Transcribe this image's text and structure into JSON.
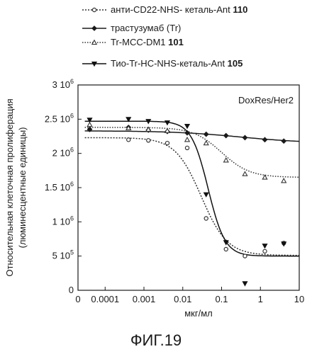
{
  "figure_caption": "ФИГ.19",
  "chart_data": {
    "type": "scatter",
    "title": "",
    "panel_label": "DoxRes/Her2",
    "xlabel": "мкг/мл",
    "ylabel_line1": "Относительная клеточная пролиферация",
    "ylabel_line2": "(люминесцентные единицы)",
    "x_scale": "log",
    "xlim": [
      2e-05,
      10
    ],
    "ylim": [
      0,
      3000000
    ],
    "grid": false,
    "legend_position": "top",
    "x_ticks": [
      {
        "value": 2e-05,
        "label": "0"
      },
      {
        "value": 0.0001,
        "label": "0.0001"
      },
      {
        "value": 0.001,
        "label": "0.001"
      },
      {
        "value": 0.01,
        "label": "0.01"
      },
      {
        "value": 0.1,
        "label": "0.1"
      },
      {
        "value": 1,
        "label": "1"
      },
      {
        "value": 10,
        "label": "10"
      }
    ],
    "y_ticks": [
      {
        "value": 0,
        "mant": "0",
        "exp": ""
      },
      {
        "value": 500000,
        "mant": "5 10",
        "exp": "5"
      },
      {
        "value": 1000000,
        "mant": "1 10",
        "exp": "6"
      },
      {
        "value": 1500000,
        "mant": "1.5 10",
        "exp": "6"
      },
      {
        "value": 2000000,
        "mant": "2 10",
        "exp": "6"
      },
      {
        "value": 2500000,
        "mant": "2.5 10",
        "exp": "6"
      },
      {
        "value": 3000000,
        "mant": "3 10",
        "exp": "6"
      }
    ],
    "series": [
      {
        "name_prefix": "анти-CD22-NHS- кеталь-Ant ",
        "name_bold": "110",
        "color": "#333333",
        "dash": "2,2",
        "marker": "circle",
        "points": [
          [
            4e-05,
            2350000
          ],
          [
            0.0004,
            2200000
          ],
          [
            0.0013,
            2190000
          ],
          [
            0.004,
            2150000
          ],
          [
            0.013,
            2080000
          ],
          [
            0.04,
            1050000
          ],
          [
            0.13,
            600000
          ],
          [
            0.4,
            500000
          ],
          [
            1.3,
            570000
          ],
          [
            4,
            690000
          ]
        ],
        "curve": {
          "top": 2230000,
          "bottom": 510000,
          "ec50": 0.03,
          "hill": 1.3
        }
      },
      {
        "name_prefix": "трастузумаб (Tr)",
        "name_bold": "",
        "color": "#1a1a1a",
        "dash": "",
        "marker": "diamond",
        "points": [
          [
            4e-05,
            2350000
          ],
          [
            0.0004,
            2380000
          ],
          [
            0.0013,
            2340000
          ],
          [
            0.004,
            2320000
          ],
          [
            0.013,
            2300000
          ],
          [
            0.04,
            2280000
          ],
          [
            0.13,
            2260000
          ],
          [
            0.4,
            2230000
          ],
          [
            1.3,
            2200000
          ],
          [
            4,
            2180000
          ]
        ],
        "curve": {
          "top": 2330000,
          "bottom": 2150000,
          "ec50": 0.3,
          "hill": 0.5
        }
      },
      {
        "name_prefix": "Tr-MCC-DM1 ",
        "name_bold": "101",
        "color": "#333333",
        "dash": "1.5,2",
        "marker": "triangle",
        "points": [
          [
            4e-05,
            2420000
          ],
          [
            0.0004,
            2370000
          ],
          [
            0.0013,
            2350000
          ],
          [
            0.004,
            2330000
          ],
          [
            0.013,
            2200000
          ],
          [
            0.04,
            2150000
          ],
          [
            0.13,
            1900000
          ],
          [
            0.4,
            1700000
          ],
          [
            1.3,
            1650000
          ],
          [
            4,
            1600000
          ]
        ],
        "curve": {
          "top": 2380000,
          "bottom": 1650000,
          "ec50": 0.1,
          "hill": 1.2
        }
      },
      {
        "name_prefix": "Тио-Tr-HC-NHS-кеталь-Ant ",
        "name_bold": "105",
        "color": "#111111",
        "dash": "",
        "marker": "triangle-down",
        "points": [
          [
            4e-05,
            2490000
          ],
          [
            0.0004,
            2500000
          ],
          [
            0.0013,
            2470000
          ],
          [
            0.004,
            2450000
          ],
          [
            0.013,
            2400000
          ],
          [
            0.04,
            1400000
          ],
          [
            0.13,
            700000
          ],
          [
            0.4,
            100000
          ],
          [
            1.3,
            650000
          ],
          [
            4,
            680000
          ]
        ],
        "curve": {
          "top": 2470000,
          "bottom": 500000,
          "ec50": 0.045,
          "hill": 2.0
        }
      }
    ]
  }
}
